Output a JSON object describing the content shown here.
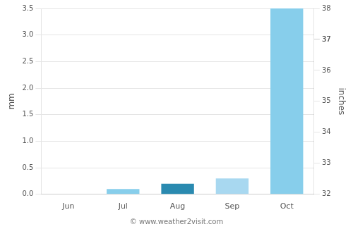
{
  "chart_data": {
    "type": "bar",
    "categories": [
      "Jun",
      "Jul",
      "Aug",
      "Sep",
      "Oct"
    ],
    "values": [
      0.0,
      0.1,
      0.2,
      0.3,
      3.5
    ],
    "colors": [
      "#a8d8f0",
      "#87ceeb",
      "#2a8ab0",
      "#a8d8f0",
      "#87ceeb"
    ],
    "y_label": "mm",
    "y2_label": "inches",
    "ylim": [
      0.0,
      3.5
    ],
    "yticks": [
      {
        "value": 0,
        "label": "0.0"
      },
      0.5,
      {
        "value": 1,
        "label": "1.0"
      },
      1.5,
      {
        "value": 2,
        "label": "2.0"
      },
      2.5,
      {
        "value": 3,
        "label": "3.0"
      },
      3.5
    ],
    "y2lim": [
      32.0,
      38.0
    ],
    "y2ticks": [
      32,
      33,
      34,
      35,
      36,
      37,
      37,
      38
    ],
    "annotations": [
      "© www.weather2visit.com"
    ],
    "grid": true
  }
}
